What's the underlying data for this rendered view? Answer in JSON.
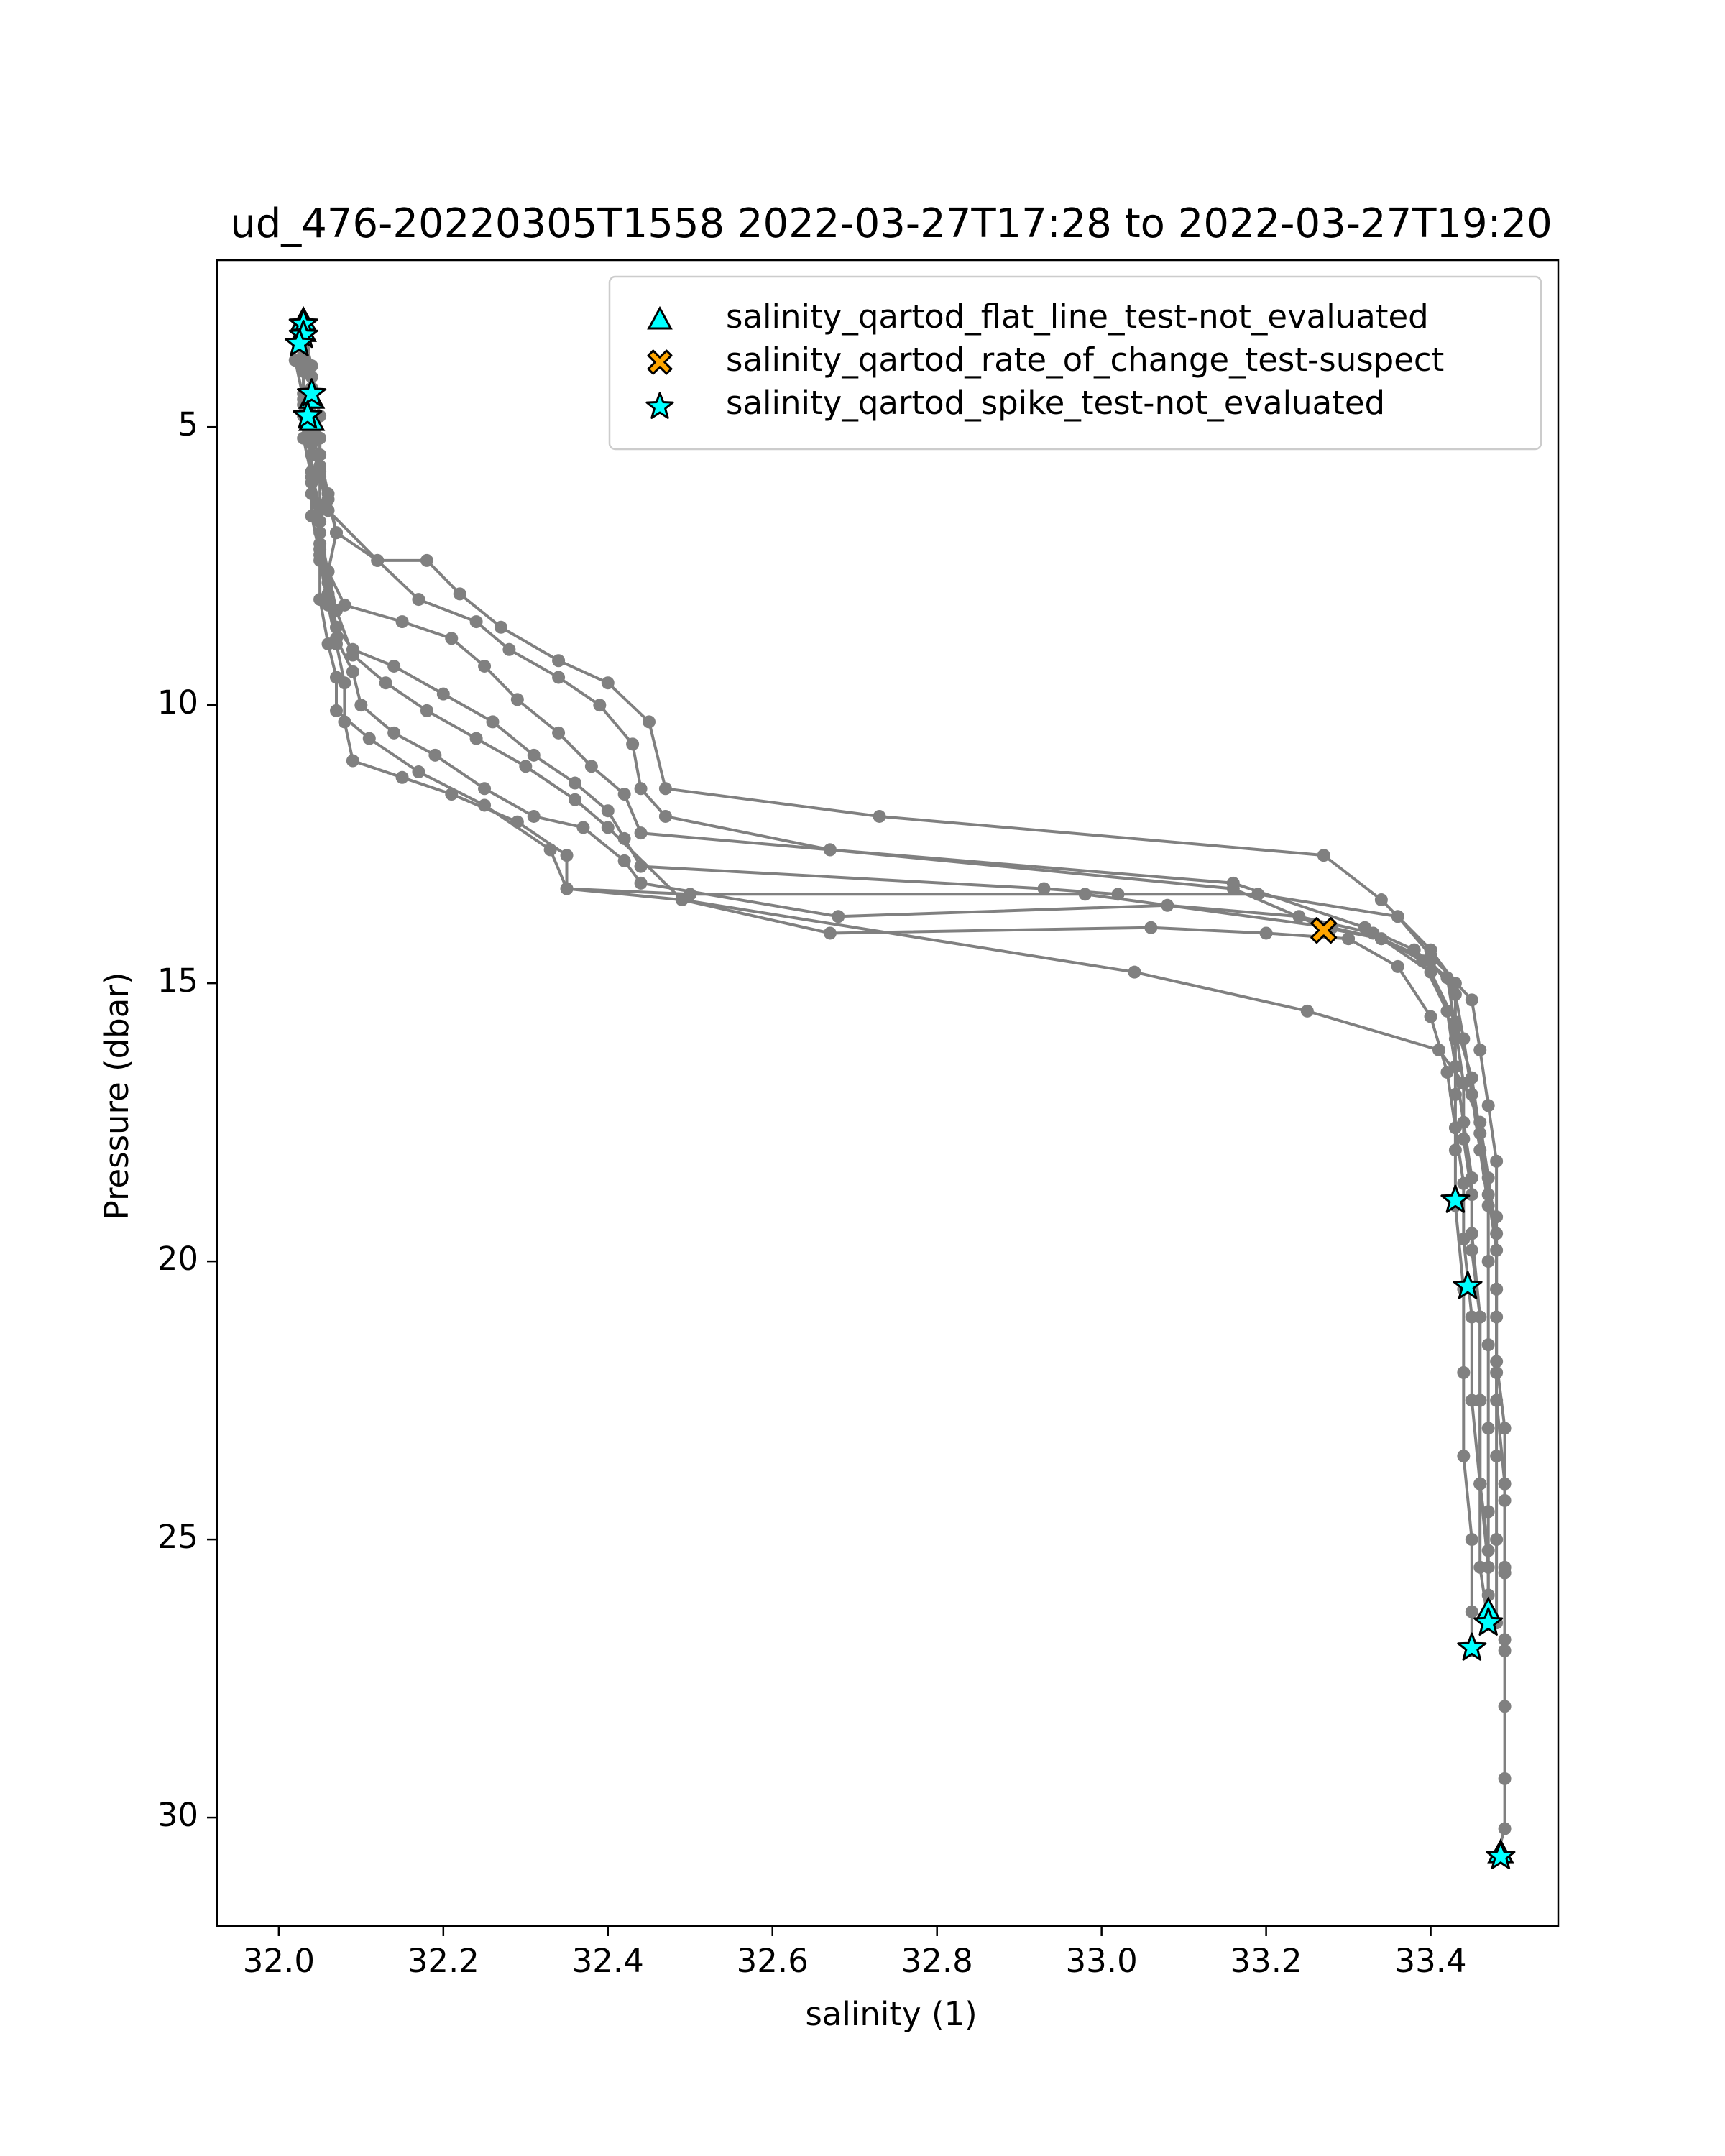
{
  "chart_data": {
    "type": "scatter",
    "title": "ud_476-20220305T1558 2022-03-27T17:28 to 2022-03-27T19:20",
    "xlabel": "salinity (1)",
    "ylabel": "Pressure (dbar)",
    "xlim": [
      31.925,
      33.555
    ],
    "ylim": [
      31.95,
      2.0
    ],
    "y_inverted": true,
    "grid": false,
    "legend_position": "top-right",
    "xticks": [
      32.0,
      32.2,
      32.4,
      32.6,
      32.8,
      33.0,
      33.2,
      33.4
    ],
    "xtick_labels": [
      "32.0",
      "32.2",
      "32.4",
      "32.6",
      "32.8",
      "33.0",
      "33.2",
      "33.4"
    ],
    "yticks": [
      5,
      10,
      15,
      20,
      25,
      30
    ],
    "ytick_labels": [
      "5",
      "10",
      "15",
      "20",
      "25",
      "30"
    ],
    "colors": {
      "profile_line": "#808080",
      "flag_flat_line": "#00ffff",
      "flag_rate_of_change": "#ffa500",
      "flag_spike": "#00ffff",
      "flag_edge": "#000000"
    },
    "profiles": [
      {
        "points": [
          [
            32.03,
            3.1
          ],
          [
            32.03,
            3.4
          ],
          [
            32.03,
            3.8
          ],
          [
            32.04,
            4.3
          ],
          [
            32.04,
            4.8
          ],
          [
            32.04,
            5.3
          ],
          [
            32.05,
            5.9
          ],
          [
            32.06,
            6.5
          ],
          [
            32.12,
            7.4
          ],
          [
            32.18,
            7.4
          ],
          [
            32.22,
            8.0
          ],
          [
            32.27,
            8.6
          ],
          [
            32.34,
            9.2
          ],
          [
            32.4,
            9.6
          ],
          [
            32.45,
            10.3
          ],
          [
            32.47,
            11.5
          ],
          [
            32.73,
            12.0
          ],
          [
            33.27,
            12.7
          ],
          [
            33.34,
            13.5
          ],
          [
            33.4,
            14.4
          ],
          [
            33.43,
            15.0
          ],
          [
            33.43,
            16.0
          ],
          [
            33.43,
            17.0
          ],
          [
            33.43,
            18.0
          ],
          [
            33.43,
            19.0
          ],
          [
            33.44,
            20.5
          ],
          [
            33.44,
            22.0
          ],
          [
            33.44,
            23.5
          ],
          [
            33.45,
            25.0
          ],
          [
            33.45,
            26.3
          ],
          [
            33.45,
            27.0
          ]
        ]
      },
      {
        "points": [
          [
            32.03,
            3.3
          ],
          [
            32.04,
            3.9
          ],
          [
            32.04,
            4.6
          ],
          [
            32.05,
            5.2
          ],
          [
            32.05,
            5.8
          ],
          [
            32.06,
            6.3
          ],
          [
            32.07,
            6.9
          ],
          [
            32.12,
            7.4
          ],
          [
            32.17,
            8.1
          ],
          [
            32.24,
            8.5
          ],
          [
            32.28,
            9.0
          ],
          [
            32.34,
            9.5
          ],
          [
            32.39,
            10.0
          ],
          [
            32.43,
            10.7
          ],
          [
            32.44,
            11.5
          ],
          [
            32.47,
            12.0
          ],
          [
            32.67,
            12.6
          ],
          [
            33.16,
            13.2
          ],
          [
            33.32,
            14.0
          ],
          [
            33.38,
            14.4
          ],
          [
            33.42,
            14.9
          ],
          [
            33.43,
            15.8
          ],
          [
            33.44,
            16.8
          ],
          [
            33.44,
            17.8
          ],
          [
            33.45,
            18.8
          ],
          [
            33.45,
            19.8
          ],
          [
            33.46,
            21.0
          ],
          [
            33.46,
            22.5
          ],
          [
            33.46,
            24.0
          ],
          [
            33.47,
            25.2
          ],
          [
            33.47,
            26.3
          ]
        ]
      },
      {
        "points": [
          [
            32.03,
            3.5
          ],
          [
            32.04,
            4.1
          ],
          [
            32.05,
            4.8
          ],
          [
            32.05,
            5.5
          ],
          [
            32.06,
            6.2
          ],
          [
            32.07,
            6.9
          ],
          [
            32.06,
            7.6
          ],
          [
            32.08,
            8.2
          ],
          [
            32.15,
            8.5
          ],
          [
            32.21,
            8.8
          ],
          [
            32.25,
            9.3
          ],
          [
            32.29,
            9.9
          ],
          [
            32.34,
            10.5
          ],
          [
            32.38,
            11.1
          ],
          [
            32.42,
            11.6
          ],
          [
            32.44,
            12.3
          ],
          [
            32.67,
            12.6
          ],
          [
            33.16,
            13.3
          ],
          [
            33.27,
            14.0
          ],
          [
            33.34,
            14.2
          ],
          [
            33.4,
            14.6
          ],
          [
            33.43,
            15.2
          ],
          [
            33.44,
            16.0
          ],
          [
            33.45,
            17.0
          ],
          [
            33.46,
            18.0
          ],
          [
            33.47,
            19.0
          ],
          [
            33.47,
            20.0
          ],
          [
            33.47,
            21.5
          ],
          [
            33.47,
            23.0
          ],
          [
            33.47,
            24.5
          ],
          [
            33.47,
            26.0
          ]
        ]
      },
      {
        "points": [
          [
            32.03,
            3.6
          ],
          [
            32.04,
            4.3
          ],
          [
            32.04,
            5.0
          ],
          [
            32.05,
            5.7
          ],
          [
            32.05,
            6.4
          ],
          [
            32.05,
            7.1
          ],
          [
            32.06,
            7.8
          ],
          [
            32.07,
            8.6
          ],
          [
            32.09,
            9.0
          ],
          [
            32.14,
            9.3
          ],
          [
            32.2,
            9.8
          ],
          [
            32.26,
            10.3
          ],
          [
            32.31,
            10.9
          ],
          [
            32.36,
            11.4
          ],
          [
            32.4,
            11.9
          ],
          [
            32.42,
            12.4
          ],
          [
            32.44,
            12.9
          ],
          [
            32.93,
            13.3
          ],
          [
            33.02,
            13.4
          ],
          [
            33.19,
            13.4
          ],
          [
            33.36,
            13.8
          ],
          [
            33.4,
            14.5
          ],
          [
            33.45,
            15.3
          ],
          [
            33.46,
            16.2
          ],
          [
            33.47,
            17.2
          ],
          [
            33.48,
            18.2
          ],
          [
            33.48,
            19.2
          ],
          [
            33.48,
            20.5
          ],
          [
            33.48,
            22.0
          ],
          [
            33.48,
            23.5
          ],
          [
            33.48,
            25.0
          ],
          [
            33.48,
            26.5
          ]
        ]
      },
      {
        "points": [
          [
            32.03,
            3.7
          ],
          [
            32.03,
            4.4
          ],
          [
            32.04,
            5.1
          ],
          [
            32.04,
            5.8
          ],
          [
            32.05,
            6.5
          ],
          [
            32.05,
            7.2
          ],
          [
            32.06,
            8.0
          ],
          [
            32.07,
            8.8
          ],
          [
            32.09,
            9.4
          ],
          [
            32.1,
            10.0
          ],
          [
            32.14,
            10.5
          ],
          [
            32.19,
            10.9
          ],
          [
            32.25,
            11.5
          ],
          [
            32.31,
            12.0
          ],
          [
            32.37,
            12.2
          ],
          [
            32.42,
            12.8
          ],
          [
            32.44,
            13.2
          ],
          [
            32.68,
            13.8
          ],
          [
            33.08,
            13.6
          ],
          [
            33.24,
            13.8
          ],
          [
            33.33,
            14.1
          ],
          [
            33.39,
            14.6
          ],
          [
            33.42,
            15.5
          ],
          [
            33.43,
            16.5
          ],
          [
            33.44,
            17.5
          ],
          [
            33.45,
            18.5
          ],
          [
            33.45,
            19.5
          ],
          [
            33.46,
            21.0
          ],
          [
            33.46,
            22.5
          ],
          [
            33.46,
            24.0
          ],
          [
            33.47,
            25.5
          ]
        ]
      },
      {
        "points": [
          [
            32.02,
            3.8
          ],
          [
            32.03,
            4.5
          ],
          [
            32.03,
            5.2
          ],
          [
            32.04,
            5.9
          ],
          [
            32.04,
            6.6
          ],
          [
            32.05,
            7.3
          ],
          [
            32.05,
            8.1
          ],
          [
            32.06,
            8.9
          ],
          [
            32.07,
            9.5
          ],
          [
            32.07,
            10.1
          ],
          [
            32.11,
            10.6
          ],
          [
            32.17,
            11.2
          ],
          [
            32.25,
            11.8
          ],
          [
            32.33,
            12.6
          ],
          [
            32.35,
            13.3
          ],
          [
            32.49,
            13.5
          ],
          [
            32.67,
            14.1
          ],
          [
            33.06,
            14.0
          ],
          [
            33.2,
            14.1
          ],
          [
            33.3,
            14.2
          ],
          [
            33.36,
            14.7
          ],
          [
            33.4,
            15.6
          ],
          [
            33.42,
            16.6
          ],
          [
            33.43,
            17.6
          ],
          [
            33.44,
            18.6
          ],
          [
            33.44,
            19.6
          ],
          [
            33.45,
            21.0
          ],
          [
            33.45,
            22.5
          ],
          [
            33.46,
            24.0
          ],
          [
            33.46,
            25.5
          ],
          [
            33.47,
            26.5
          ]
        ]
      },
      {
        "points": [
          [
            32.03,
            3.9
          ],
          [
            32.03,
            4.6
          ],
          [
            32.04,
            5.3
          ],
          [
            32.04,
            6.0
          ],
          [
            32.05,
            6.7
          ],
          [
            32.05,
            7.4
          ],
          [
            32.06,
            8.2
          ],
          [
            32.07,
            8.9
          ],
          [
            32.08,
            9.6
          ],
          [
            32.08,
            10.3
          ],
          [
            32.09,
            11.0
          ],
          [
            32.15,
            11.3
          ],
          [
            32.21,
            11.6
          ],
          [
            32.29,
            12.1
          ],
          [
            32.35,
            12.7
          ],
          [
            32.35,
            13.3
          ],
          [
            32.5,
            13.4
          ],
          [
            32.98,
            13.4
          ],
          [
            33.28,
            14.0
          ],
          [
            33.34,
            14.2
          ],
          [
            33.4,
            14.8
          ],
          [
            33.43,
            15.7
          ],
          [
            33.45,
            16.7
          ],
          [
            33.46,
            17.7
          ],
          [
            33.47,
            18.8
          ],
          [
            33.48,
            19.8
          ],
          [
            33.48,
            21.0
          ],
          [
            33.48,
            22.5
          ],
          [
            33.49,
            24.0
          ],
          [
            33.49,
            25.5
          ],
          [
            33.49,
            27.0
          ]
        ]
      },
      {
        "points": [
          [
            32.03,
            4.0
          ],
          [
            32.03,
            4.8
          ],
          [
            32.04,
            5.5
          ],
          [
            32.04,
            6.2
          ],
          [
            32.05,
            6.9
          ],
          [
            32.06,
            7.6
          ],
          [
            32.07,
            8.3
          ],
          [
            32.09,
            9.1
          ],
          [
            32.13,
            9.6
          ],
          [
            32.18,
            10.1
          ],
          [
            32.24,
            10.6
          ],
          [
            32.3,
            11.1
          ],
          [
            32.36,
            11.7
          ],
          [
            32.4,
            12.2
          ],
          [
            32.49,
            13.5
          ],
          [
            33.04,
            14.8
          ],
          [
            33.25,
            15.5
          ],
          [
            33.41,
            16.2
          ],
          [
            33.44,
            16.8
          ],
          [
            33.46,
            17.5
          ],
          [
            33.47,
            18.5
          ],
          [
            33.48,
            19.5
          ],
          [
            33.48,
            20.5
          ],
          [
            33.48,
            21.8
          ],
          [
            33.49,
            23.0
          ],
          [
            33.49,
            24.3
          ],
          [
            33.49,
            25.6
          ],
          [
            33.49,
            26.8
          ],
          [
            33.49,
            28.0
          ],
          [
            33.49,
            29.3
          ],
          [
            33.49,
            30.2
          ],
          [
            33.48,
            30.7
          ]
        ]
      }
    ],
    "flags": {
      "flat_line_not_evaluated": [
        [
          32.03,
          3.1
        ],
        [
          32.03,
          3.3
        ],
        [
          32.04,
          4.5
        ],
        [
          32.04,
          4.9
        ],
        [
          33.47,
          26.3
        ],
        [
          33.485,
          30.65
        ]
      ],
      "rate_of_change_suspect": [
        [
          33.27,
          14.05
        ]
      ],
      "spike_not_evaluated": [
        [
          32.03,
          3.15
        ],
        [
          32.03,
          3.35
        ],
        [
          32.025,
          3.5
        ],
        [
          32.04,
          4.4
        ],
        [
          32.035,
          4.8
        ],
        [
          33.43,
          18.9
        ],
        [
          33.445,
          20.45
        ],
        [
          33.47,
          26.5
        ],
        [
          33.45,
          26.95
        ],
        [
          33.485,
          30.7
        ]
      ]
    },
    "legend": [
      "salinity_qartod_flat_line_test-not_evaluated",
      "salinity_qartod_rate_of_change_test-suspect",
      "salinity_qartod_spike_test-not_evaluated"
    ]
  }
}
